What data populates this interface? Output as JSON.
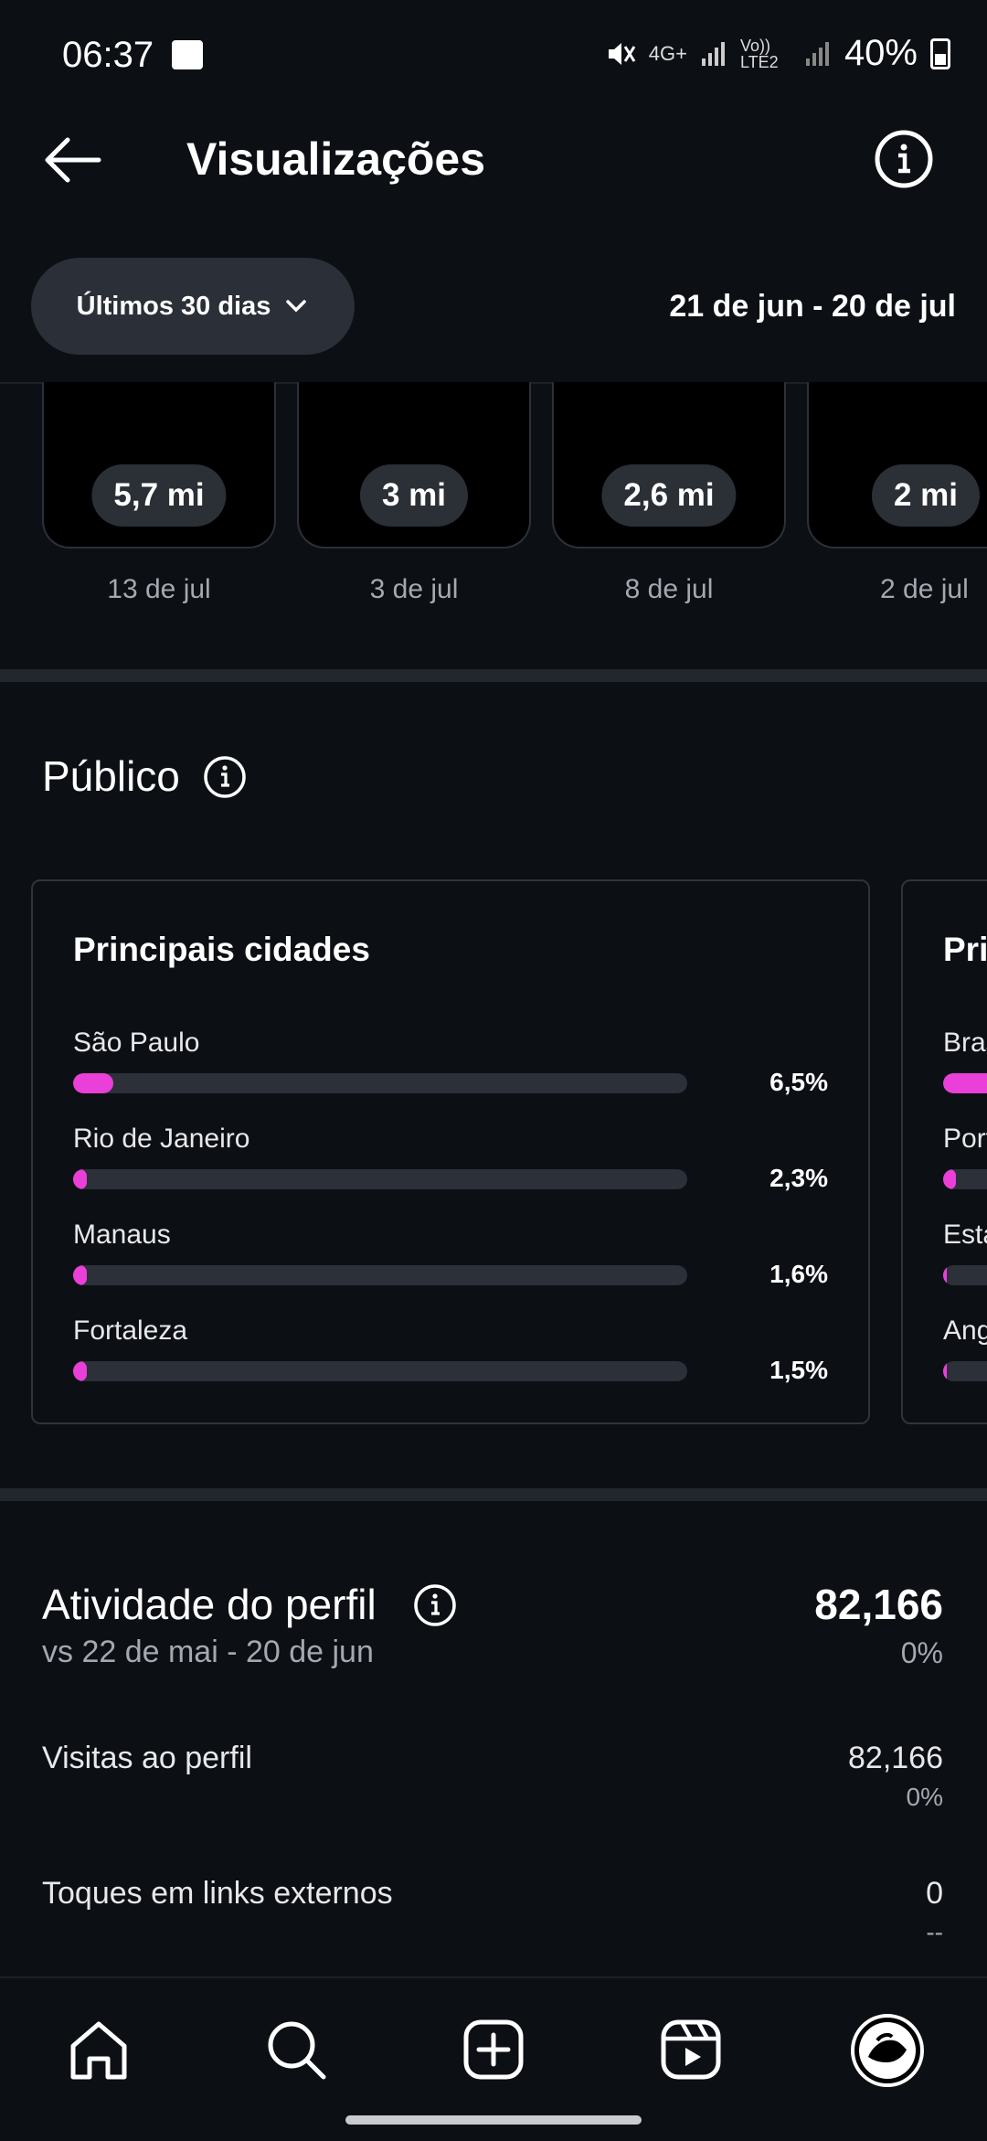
{
  "status_bar": {
    "time": "06:37",
    "network": "4G+",
    "volte": "Vo)) LTE2",
    "battery": "40%"
  },
  "header": {
    "title": "Visualizações"
  },
  "filter": {
    "range_label": "Últimos 30 dias",
    "date_range": "21 de jun - 20 de jul"
  },
  "top_posts": [
    {
      "value": "5,7 mi",
      "date": "13 de jul"
    },
    {
      "value": "3 mi",
      "date": "3 de jul"
    },
    {
      "value": "2,6 mi",
      "date": "8 de jul"
    },
    {
      "value": "2 mi",
      "date": "2 de jul"
    }
  ],
  "audience": {
    "title": "Público",
    "cities_card": {
      "title": "Principais cidades",
      "items": [
        {
          "name": "São Paulo",
          "pct": "6,5%",
          "value": 6.5
        },
        {
          "name": "Rio de Janeiro",
          "pct": "2,3%",
          "value": 2.3
        },
        {
          "name": "Manaus",
          "pct": "1,6%",
          "value": 1.6
        },
        {
          "name": "Fortaleza",
          "pct": "1,5%",
          "value": 1.5
        }
      ]
    },
    "countries_card": {
      "title": "Pri",
      "items": [
        {
          "name": "Bras"
        },
        {
          "name": "Port"
        },
        {
          "name": "Esta"
        },
        {
          "name": "Ang"
        }
      ]
    }
  },
  "profile_activity": {
    "title": "Atividade do perfil",
    "comparison": "vs 22 de mai - 20 de jun",
    "total": "82,166",
    "total_change": "0%",
    "rows": [
      {
        "label": "Visitas ao perfil",
        "value": "82,166",
        "change": "0%"
      },
      {
        "label": "Toques em links externos",
        "value": "0",
        "change": "--"
      }
    ]
  },
  "colors": {
    "accent": "#ea3fd8",
    "background": "#0c0f14",
    "pill": "#2a2f38"
  }
}
